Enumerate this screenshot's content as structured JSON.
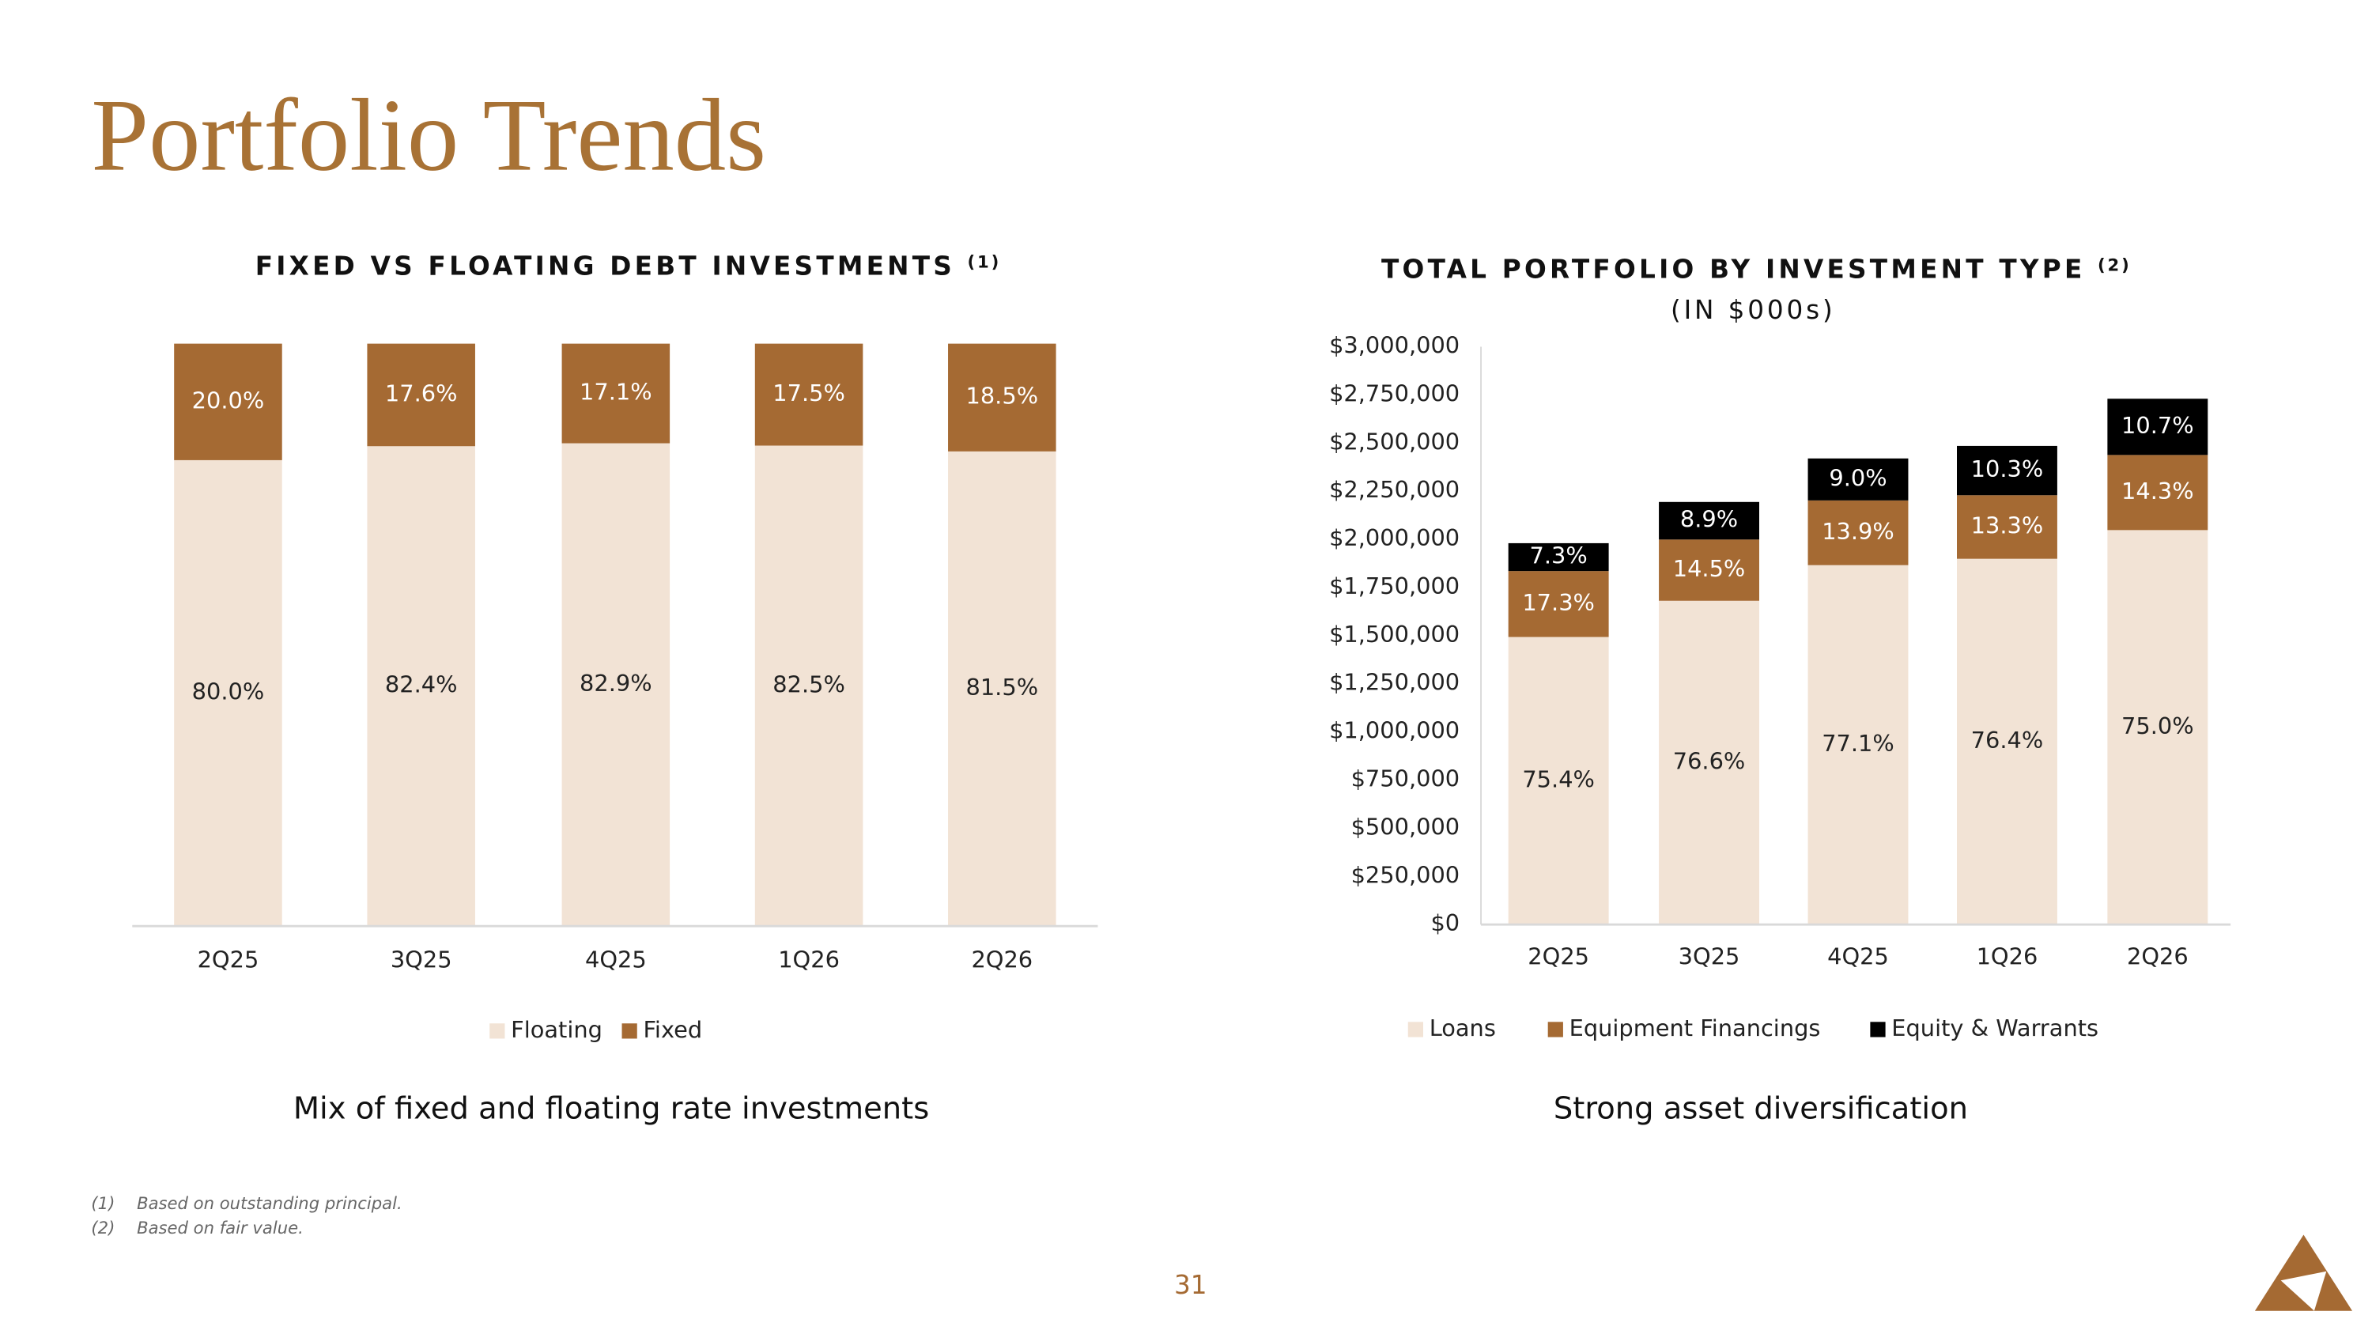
{
  "title": "Portfolio Trends",
  "footnotes": [
    {
      "marker": "(1)",
      "text": "Based on outstanding principal."
    },
    {
      "marker": "(2)",
      "text": "Based on fair value."
    }
  ],
  "page_number": "31",
  "chart_data": [
    {
      "type": "stacked_bar",
      "title": "FIXED VS FLOATING DEBT INVESTMENTS",
      "title_note": "(1)",
      "caption": "Mix of fixed and floating rate investments",
      "categories": [
        "2Q25",
        "3Q25",
        "4Q25",
        "1Q26",
        "2Q26"
      ],
      "series": [
        {
          "name": "Floating",
          "color": "#f2e3d5",
          "label_color": "#222222",
          "values": [
            80.0,
            82.4,
            82.9,
            82.5,
            81.5
          ],
          "value_labels": [
            "80.0%",
            "82.4%",
            "82.9%",
            "82.5%",
            "81.5%"
          ]
        },
        {
          "name": "Fixed",
          "color": "#a56a33",
          "label_color": "#ffffff",
          "values": [
            20.0,
            17.6,
            17.1,
            17.5,
            18.5
          ],
          "value_labels": [
            "20.0%",
            "17.6%",
            "17.1%",
            "17.5%",
            "18.5%"
          ]
        }
      ]
    },
    {
      "type": "stacked_bar",
      "title": "TOTAL PORTFOLIO BY INVESTMENT TYPE",
      "title_note": "(2)",
      "subtitle": "(IN $000s)",
      "caption": "Strong asset diversification",
      "categories": [
        "2Q25",
        "3Q25",
        "4Q25",
        "1Q26",
        "2Q26"
      ],
      "series": [
        {
          "name": "Loans",
          "color": "#f2e3d5",
          "label_color": "#222222",
          "values": [
            1493000,
            1681000,
            1866000,
            1899000,
            2048000
          ],
          "share_labels": [
            "75.4%",
            "76.6%",
            "77.1%",
            "76.4%",
            "75.0%"
          ]
        },
        {
          "name": "Equipment Financings",
          "color": "#a56a33",
          "label_color": "#ffffff",
          "values": [
            342500,
            318000,
            336000,
            330000,
            390000
          ],
          "share_labels": [
            "17.3%",
            "14.5%",
            "13.9%",
            "13.3%",
            "14.3%"
          ]
        },
        {
          "name": "Equity & Warrants",
          "color": "#000000",
          "label_color": "#ffffff",
          "values": [
            144500,
            195000,
            218000,
            256000,
            292000
          ],
          "share_labels": [
            "7.3%",
            "8.9%",
            "9.0%",
            "10.3%",
            "10.7%"
          ]
        }
      ],
      "ylim": [
        0,
        3000000
      ],
      "yticks": [
        {
          "value": 0,
          "label": "$0"
        },
        {
          "value": 250000,
          "label": "$250,000"
        },
        {
          "value": 500000,
          "label": "$500,000"
        },
        {
          "value": 750000,
          "label": "$750,000"
        },
        {
          "value": 1000000,
          "label": "$1,000,000"
        },
        {
          "value": 1250000,
          "label": "$1,250,000"
        },
        {
          "value": 1500000,
          "label": "$1,500,000"
        },
        {
          "value": 1750000,
          "label": "$1,750,000"
        },
        {
          "value": 2000000,
          "label": "$2,000,000"
        },
        {
          "value": 2250000,
          "label": "$2,250,000"
        },
        {
          "value": 2500000,
          "label": "$2,500,000"
        },
        {
          "value": 2750000,
          "label": "$2,750,000"
        },
        {
          "value": 3000000,
          "label": "$3,000,000"
        }
      ],
      "grid": false
    }
  ]
}
